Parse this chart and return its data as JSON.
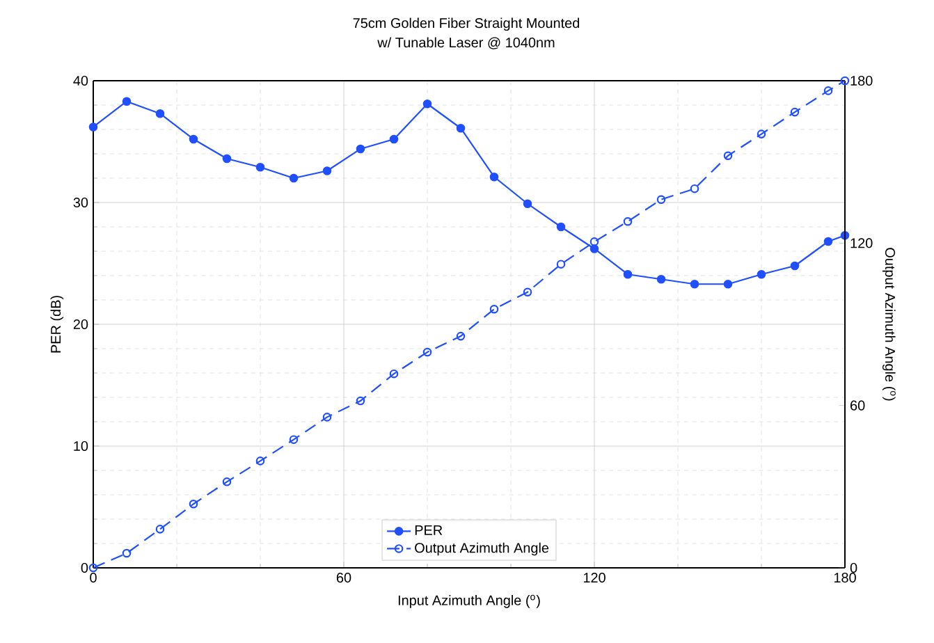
{
  "chart_data": {
    "type": "line",
    "title": "75cm Golden Fiber Straight Mounted",
    "subtitle": "w/ Tunable Laser @ 1040nm",
    "xlabel": "Input Azimuth Angle ($^{o}$)",
    "ylabel": "PER (dB)",
    "y2label": "Output Azimuth Angle ($^{o}$)",
    "x": [
      0,
      8,
      16,
      24,
      32,
      40,
      48,
      56,
      64,
      72,
      80,
      88,
      96,
      104,
      112,
      120,
      128,
      136,
      144,
      152,
      160,
      168,
      176,
      180
    ],
    "series": [
      {
        "name": "PER",
        "color": "#1f4fff",
        "line_style": "solid",
        "values": [
          36.2,
          38.3,
          37.3,
          35.2,
          33.6,
          32.9,
          32.0,
          32.6,
          34.4,
          35.2,
          38.1,
          36.1,
          32.1,
          29.9,
          28.0,
          26.2,
          24.1,
          23.7,
          23.3,
          23.3,
          24.1,
          24.8,
          26.8,
          27.3
        ]
      },
      {
        "name": "Output Azimuth Angle",
        "color": "#1f4fff",
        "line_style": "dashed",
        "axis": "y2",
        "values": [
          0,
          5.4,
          14.3,
          23.6,
          31.8,
          39.5,
          47.4,
          55.7,
          61.7,
          71.7,
          79.7,
          85.6,
          95.6,
          101.9,
          112.2,
          120.5,
          128.0,
          136.1,
          140.1,
          152.3,
          160.3,
          168.4,
          176.3,
          180
        ]
      }
    ],
    "xlim": [
      0,
      180
    ],
    "xticks": [
      0,
      60,
      120,
      180
    ],
    "ylim": [
      0,
      40
    ],
    "yticks": [
      0,
      10,
      20,
      30,
      40
    ],
    "y2lim": [
      0,
      180
    ],
    "y2ticks": [
      0,
      60,
      120,
      180
    ],
    "grid": true,
    "legend": "bottom",
    "marker": "circle"
  }
}
